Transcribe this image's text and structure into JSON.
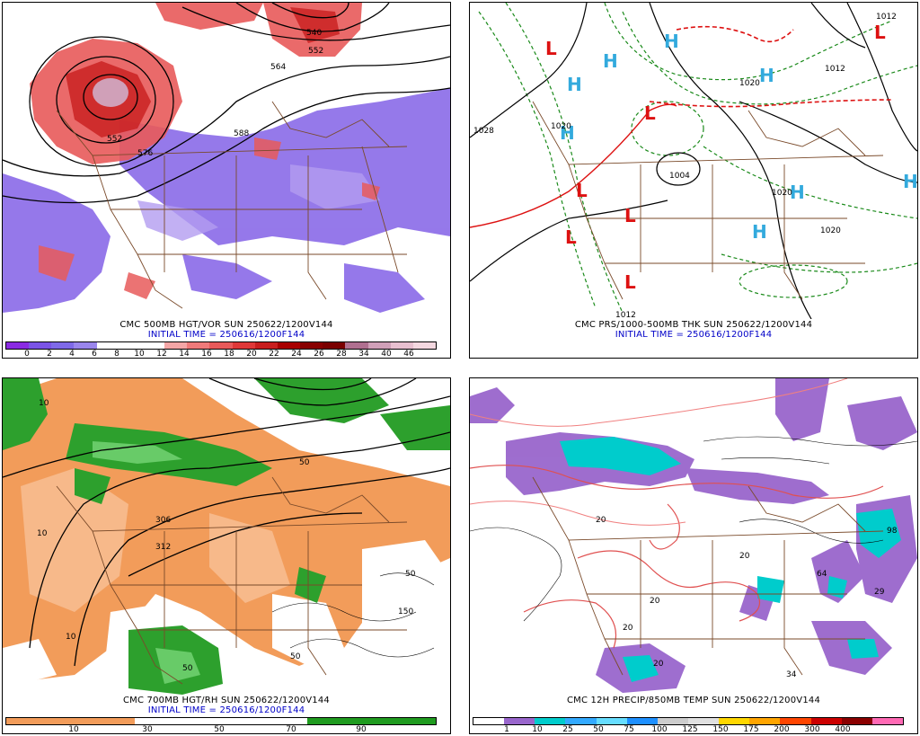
{
  "panels": [
    {
      "caption": "CMC 500MB HGT/VOR SUN 250622/1200V144",
      "initial": "INITIAL TIME = 250616/1200F144",
      "scale_colors": [
        "#8a2be2",
        "#7b54e6",
        "#7f6ae8",
        "#9a86ec",
        "#ffffff",
        "#ffffff",
        "#ffffff",
        "#f4a6a6",
        "#ef7a7a",
        "#e85a5a",
        "#df3838",
        "#c81e1e",
        "#a80000",
        "#880000",
        "#7a0000",
        "#b07090",
        "#d0a0b8",
        "#e8c0d0",
        "#f4d8e0"
      ],
      "scale_labels": [
        "0",
        "2",
        "4",
        "6",
        "8",
        "10",
        "12",
        "14",
        "16",
        "18",
        "20",
        "22",
        "24",
        "26",
        "28",
        "34",
        "40",
        "46"
      ],
      "contour_labels": [
        "540",
        "552",
        "564",
        "576",
        "588",
        "552",
        "576"
      ]
    },
    {
      "caption": "CMC PRS/1000-500MB THK SUN 250622/1200V144",
      "initial": "INITIAL TIME = 250616/1200F144",
      "pressure_labels": [
        "1028",
        "1020",
        "1004",
        "1012",
        "1020",
        "1020",
        "1020",
        "1020",
        "1012",
        "1012"
      ],
      "high_label": "H",
      "low_label": "L"
    },
    {
      "caption": "CMC 700MB HGT/RH SUN 250622/1200V144",
      "initial": "INITIAL TIME = 250616/1200F144",
      "scale_colors": [
        "#f29c5a",
        "#f29c5a",
        "#f29c5a",
        "#ffffff",
        "#ffffff",
        "#ffffff",
        "#ffffff",
        "#1f9b1f",
        "#1f9b1f",
        "#1f9b1f"
      ],
      "scale_labels": [
        "10",
        "30",
        "50",
        "70",
        "90"
      ],
      "contour_labels": [
        "306",
        "312",
        "10",
        "10",
        "50",
        "50",
        "150",
        "50",
        "50",
        "10"
      ]
    },
    {
      "caption": "CMC 12H PRECIP/850MB TEMP SUN 250622/1200V144",
      "initial": "",
      "scale_colors": [
        "#ffffff",
        "#9966cc",
        "#00cccc",
        "#33aaff",
        "#66ddff",
        "#1e90ff",
        "#cccccc",
        "#e0e0e0",
        "#ffd700",
        "#ffa500",
        "#ff4500",
        "#cc0000",
        "#8b0000",
        "#ff69b4"
      ],
      "scale_labels": [
        "1",
        "10",
        "25",
        "50",
        "75",
        "100",
        "125",
        "150",
        "175",
        "200",
        "300",
        "400"
      ],
      "contour_labels": [
        "20",
        "20",
        "20",
        "20",
        "20",
        "34",
        "64",
        "98",
        "29",
        "20"
      ]
    }
  ]
}
